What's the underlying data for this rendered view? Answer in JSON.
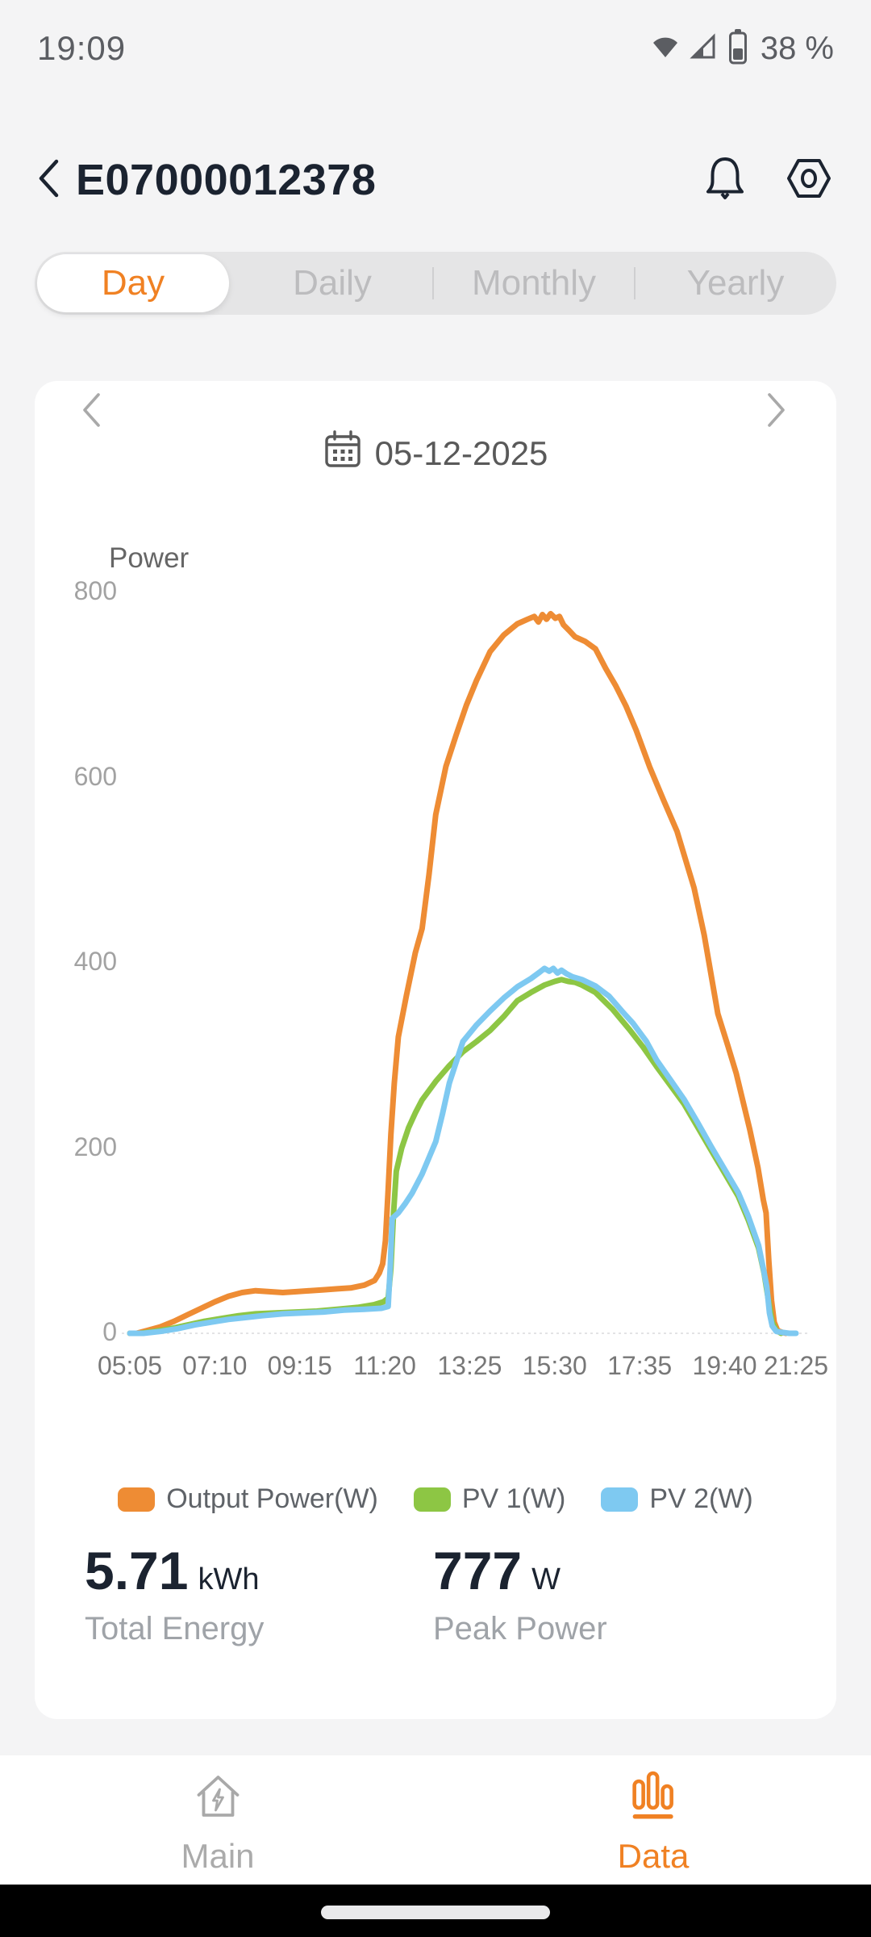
{
  "status_bar": {
    "time": "19:09",
    "battery_text": "38 %"
  },
  "header": {
    "title": "E07000012378"
  },
  "tabs": {
    "active": "Day",
    "items": [
      {
        "label": "Day"
      },
      {
        "label": "Daily"
      },
      {
        "label": "Monthly"
      },
      {
        "label": "Yearly"
      }
    ]
  },
  "date_nav": {
    "date": "05-12-2025"
  },
  "colors": {
    "accent_orange": "#F08123",
    "line_orange": "#EE8C34",
    "line_green": "#8DC644",
    "line_blue": "#7EC9F1",
    "inactive_gray": "#ABABAB",
    "page_bg": "#F4F4F5",
    "card_bg": "#FFFFFF"
  },
  "icons": {
    "status": [
      "wifi-icon",
      "cell-signal-icon",
      "battery-icon"
    ],
    "header": [
      "back-chevron-icon",
      "bell-icon",
      "settings-nut-icon"
    ],
    "date": [
      "chevron-left-icon",
      "calendar-icon",
      "chevron-right-icon"
    ],
    "nav": [
      "home-lightning-icon",
      "bar-chart-icon"
    ]
  },
  "chart_data": {
    "type": "line",
    "title": "Power",
    "xlabel": "",
    "ylabel": "Power",
    "y_max": 800,
    "y_ticks": [
      0,
      200,
      400,
      600,
      800
    ],
    "x_tick_labels": [
      "05:05",
      "07:10",
      "09:15",
      "11:20",
      "13:25",
      "15:30",
      "17:35",
      "19:40",
      "21:25"
    ],
    "grid": false,
    "legend_position": "bottom",
    "series": [
      {
        "name": "Output Power(W)",
        "color": "#EE8C34",
        "points": [
          [
            "05:05",
            0
          ],
          [
            "05:15",
            0
          ],
          [
            "05:30",
            3
          ],
          [
            "05:50",
            7
          ],
          [
            "06:10",
            13
          ],
          [
            "06:30",
            20
          ],
          [
            "06:50",
            27
          ],
          [
            "07:10",
            34
          ],
          [
            "07:30",
            40
          ],
          [
            "07:50",
            44
          ],
          [
            "08:10",
            46
          ],
          [
            "08:30",
            45
          ],
          [
            "08:50",
            44
          ],
          [
            "09:10",
            45
          ],
          [
            "09:30",
            46
          ],
          [
            "09:50",
            47
          ],
          [
            "10:10",
            48
          ],
          [
            "10:30",
            49
          ],
          [
            "10:50",
            52
          ],
          [
            "11:05",
            57
          ],
          [
            "11:12",
            65
          ],
          [
            "11:17",
            75
          ],
          [
            "11:21",
            100
          ],
          [
            "11:25",
            155
          ],
          [
            "11:29",
            215
          ],
          [
            "11:34",
            270
          ],
          [
            "11:40",
            320
          ],
          [
            "11:52",
            365
          ],
          [
            "12:05",
            411
          ],
          [
            "12:15",
            437
          ],
          [
            "12:25",
            495
          ],
          [
            "12:35",
            560
          ],
          [
            "12:50",
            612
          ],
          [
            "13:05",
            646
          ],
          [
            "13:20",
            678
          ],
          [
            "13:35",
            705
          ],
          [
            "13:55",
            736
          ],
          [
            "14:15",
            754
          ],
          [
            "14:35",
            766
          ],
          [
            "14:50",
            771
          ],
          [
            "15:00",
            774
          ],
          [
            "15:06",
            768
          ],
          [
            "15:12",
            776
          ],
          [
            "15:18",
            771
          ],
          [
            "15:24",
            777
          ],
          [
            "15:31",
            772
          ],
          [
            "15:37",
            774
          ],
          [
            "15:43",
            765
          ],
          [
            "15:51",
            759
          ],
          [
            "16:00",
            752
          ],
          [
            "16:15",
            747
          ],
          [
            "16:30",
            739
          ],
          [
            "16:45",
            718
          ],
          [
            "17:00",
            699
          ],
          [
            "17:15",
            677
          ],
          [
            "17:30",
            651
          ],
          [
            "17:50",
            611
          ],
          [
            "18:10",
            576
          ],
          [
            "18:30",
            542
          ],
          [
            "18:55",
            481
          ],
          [
            "19:10",
            430
          ],
          [
            "19:30",
            345
          ],
          [
            "19:45",
            310
          ],
          [
            "19:57",
            281
          ],
          [
            "20:17",
            220
          ],
          [
            "20:29",
            179
          ],
          [
            "20:37",
            144
          ],
          [
            "20:41",
            130
          ],
          [
            "20:45",
            78
          ],
          [
            "20:49",
            35
          ],
          [
            "20:53",
            12
          ],
          [
            "20:58",
            3
          ],
          [
            "21:05",
            1
          ],
          [
            "21:10",
            0
          ]
        ]
      },
      {
        "name": "PV 1(W)",
        "color": "#8DC644",
        "points": [
          [
            "05:05",
            0
          ],
          [
            "05:20",
            0
          ],
          [
            "05:40",
            2
          ],
          [
            "06:05",
            5
          ],
          [
            "06:30",
            9
          ],
          [
            "06:55",
            13
          ],
          [
            "07:20",
            16
          ],
          [
            "07:45",
            19
          ],
          [
            "08:10",
            21
          ],
          [
            "08:40",
            22
          ],
          [
            "09:10",
            23
          ],
          [
            "09:40",
            24
          ],
          [
            "10:10",
            26
          ],
          [
            "10:40",
            28
          ],
          [
            "11:05",
            31
          ],
          [
            "11:18",
            34
          ],
          [
            "11:25",
            38
          ],
          [
            "11:29",
            70
          ],
          [
            "11:33",
            130
          ],
          [
            "11:37",
            175
          ],
          [
            "11:45",
            200
          ],
          [
            "11:55",
            222
          ],
          [
            "12:05",
            238
          ],
          [
            "12:15",
            252
          ],
          [
            "12:35",
            272
          ],
          [
            "12:55",
            289
          ],
          [
            "13:15",
            304
          ],
          [
            "13:35",
            315
          ],
          [
            "13:55",
            327
          ],
          [
            "14:15",
            342
          ],
          [
            "14:35",
            359
          ],
          [
            "14:55",
            368
          ],
          [
            "15:15",
            376
          ],
          [
            "15:30",
            380
          ],
          [
            "15:40",
            382
          ],
          [
            "15:50",
            380
          ],
          [
            "16:00",
            379
          ],
          [
            "16:10",
            376
          ],
          [
            "16:30",
            368
          ],
          [
            "16:55",
            350
          ],
          [
            "17:20",
            328
          ],
          [
            "17:40",
            309
          ],
          [
            "18:00",
            288
          ],
          [
            "18:20",
            268
          ],
          [
            "18:40",
            248
          ],
          [
            "19:00",
            223
          ],
          [
            "19:20",
            198
          ],
          [
            "19:40",
            173
          ],
          [
            "20:00",
            148
          ],
          [
            "20:15",
            122
          ],
          [
            "20:30",
            92
          ],
          [
            "20:38",
            65
          ],
          [
            "20:44",
            38
          ],
          [
            "20:50",
            12
          ],
          [
            "20:56",
            3
          ],
          [
            "21:03",
            0
          ]
        ]
      },
      {
        "name": "PV 2(W)",
        "color": "#7EC9F1",
        "points": [
          [
            "05:05",
            0
          ],
          [
            "05:25",
            0
          ],
          [
            "05:50",
            2
          ],
          [
            "06:15",
            5
          ],
          [
            "06:40",
            9
          ],
          [
            "07:05",
            12
          ],
          [
            "07:30",
            15
          ],
          [
            "07:55",
            17
          ],
          [
            "08:20",
            19
          ],
          [
            "08:50",
            21
          ],
          [
            "09:20",
            22
          ],
          [
            "09:50",
            23
          ],
          [
            "10:20",
            25
          ],
          [
            "10:50",
            26
          ],
          [
            "11:15",
            27
          ],
          [
            "11:25",
            29
          ],
          [
            "11:28",
            70
          ],
          [
            "11:31",
            124
          ],
          [
            "11:40",
            130
          ],
          [
            "11:50",
            140
          ],
          [
            "12:00",
            151
          ],
          [
            "12:15",
            172
          ],
          [
            "12:35",
            207
          ],
          [
            "12:45",
            237
          ],
          [
            "12:55",
            270
          ],
          [
            "13:15",
            315
          ],
          [
            "13:35",
            333
          ],
          [
            "13:55",
            348
          ],
          [
            "14:15",
            362
          ],
          [
            "14:35",
            374
          ],
          [
            "14:55",
            383
          ],
          [
            "15:08",
            390
          ],
          [
            "15:15",
            394
          ],
          [
            "15:22",
            391
          ],
          [
            "15:28",
            394
          ],
          [
            "15:34",
            389
          ],
          [
            "15:40",
            392
          ],
          [
            "15:48",
            388
          ],
          [
            "15:56",
            385
          ],
          [
            "16:10",
            382
          ],
          [
            "16:30",
            375
          ],
          [
            "16:50",
            364
          ],
          [
            "17:10",
            347
          ],
          [
            "17:25",
            335
          ],
          [
            "17:45",
            315
          ],
          [
            "18:00",
            295
          ],
          [
            "18:20",
            274
          ],
          [
            "18:40",
            253
          ],
          [
            "19:00",
            228
          ],
          [
            "19:20",
            202
          ],
          [
            "19:40",
            177
          ],
          [
            "20:00",
            152
          ],
          [
            "20:15",
            126
          ],
          [
            "20:30",
            95
          ],
          [
            "20:38",
            66
          ],
          [
            "20:42",
            50
          ],
          [
            "20:46",
            22
          ],
          [
            "20:50",
            8
          ],
          [
            "20:56",
            2
          ],
          [
            "21:05",
            1
          ],
          [
            "21:15",
            0
          ],
          [
            "21:25",
            0
          ]
        ]
      }
    ]
  },
  "stats": [
    {
      "value": "5.71",
      "unit": "kWh",
      "label": "Total Energy"
    },
    {
      "value": "777",
      "unit": "W",
      "label": "Peak Power"
    }
  ],
  "bottom_nav": {
    "items": [
      {
        "label": "Main",
        "active": false
      },
      {
        "label": "Data",
        "active": true
      }
    ]
  }
}
